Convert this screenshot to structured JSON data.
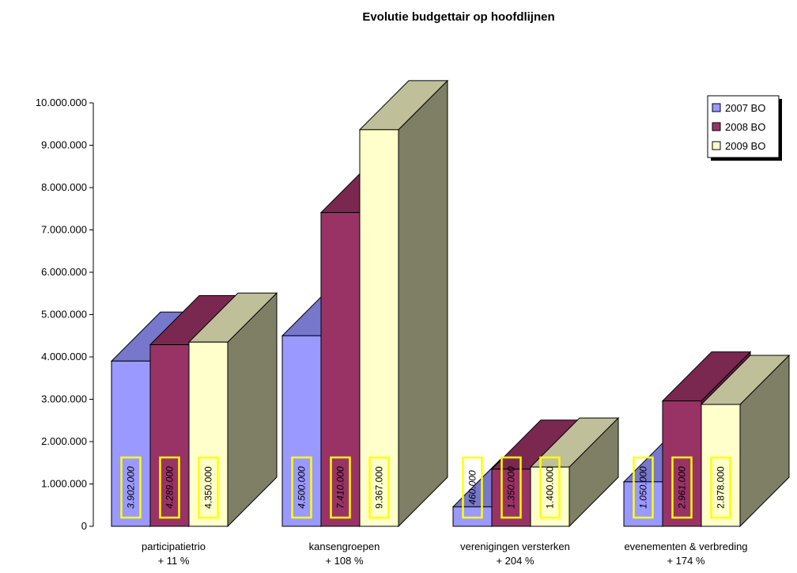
{
  "chart_data": {
    "type": "bar",
    "title": "Evolutie budgettair op hoofdlijnen",
    "categories": [
      "participatietrio",
      "kansengroepen",
      "verenigingen versterken",
      "evenementen & verbreding"
    ],
    "category_growth": [
      "+ 11 %",
      "+ 108 %",
      "+ 204 %",
      "+ 174 %"
    ],
    "series": [
      {
        "name": "2007 BO",
        "values": [
          3902000,
          4500000,
          460000,
          1050000
        ],
        "labels": [
          "3.902.000",
          "4.500.000",
          "460.000",
          "1.050.000"
        ],
        "color": "#9999ff",
        "italic": true
      },
      {
        "name": "2008 BO",
        "values": [
          4289000,
          7410000,
          1350000,
          2961000
        ],
        "labels": [
          "4.289.000",
          "7.410.000",
          "1.350.000",
          "2.961.000"
        ],
        "color": "#993366",
        "italic": true
      },
      {
        "name": "2009 BO",
        "values": [
          4350000,
          9367000,
          1400000,
          2878000
        ],
        "labels": [
          "4.350.000",
          "9.367.000",
          "1.400.000",
          "2.878.000"
        ],
        "color": "#ffffcc",
        "italic": false
      }
    ],
    "yticks": [
      "0",
      "1.000.000",
      "2.000.000",
      "3.000.000",
      "4.000.000",
      "5.000.000",
      "6.000.000",
      "7.000.000",
      "8.000.000",
      "9.000.000",
      "10.000.000"
    ],
    "ylim": [
      0,
      10000000
    ],
    "grid": false,
    "legend_position": "top-right",
    "bar_3d": true
  }
}
